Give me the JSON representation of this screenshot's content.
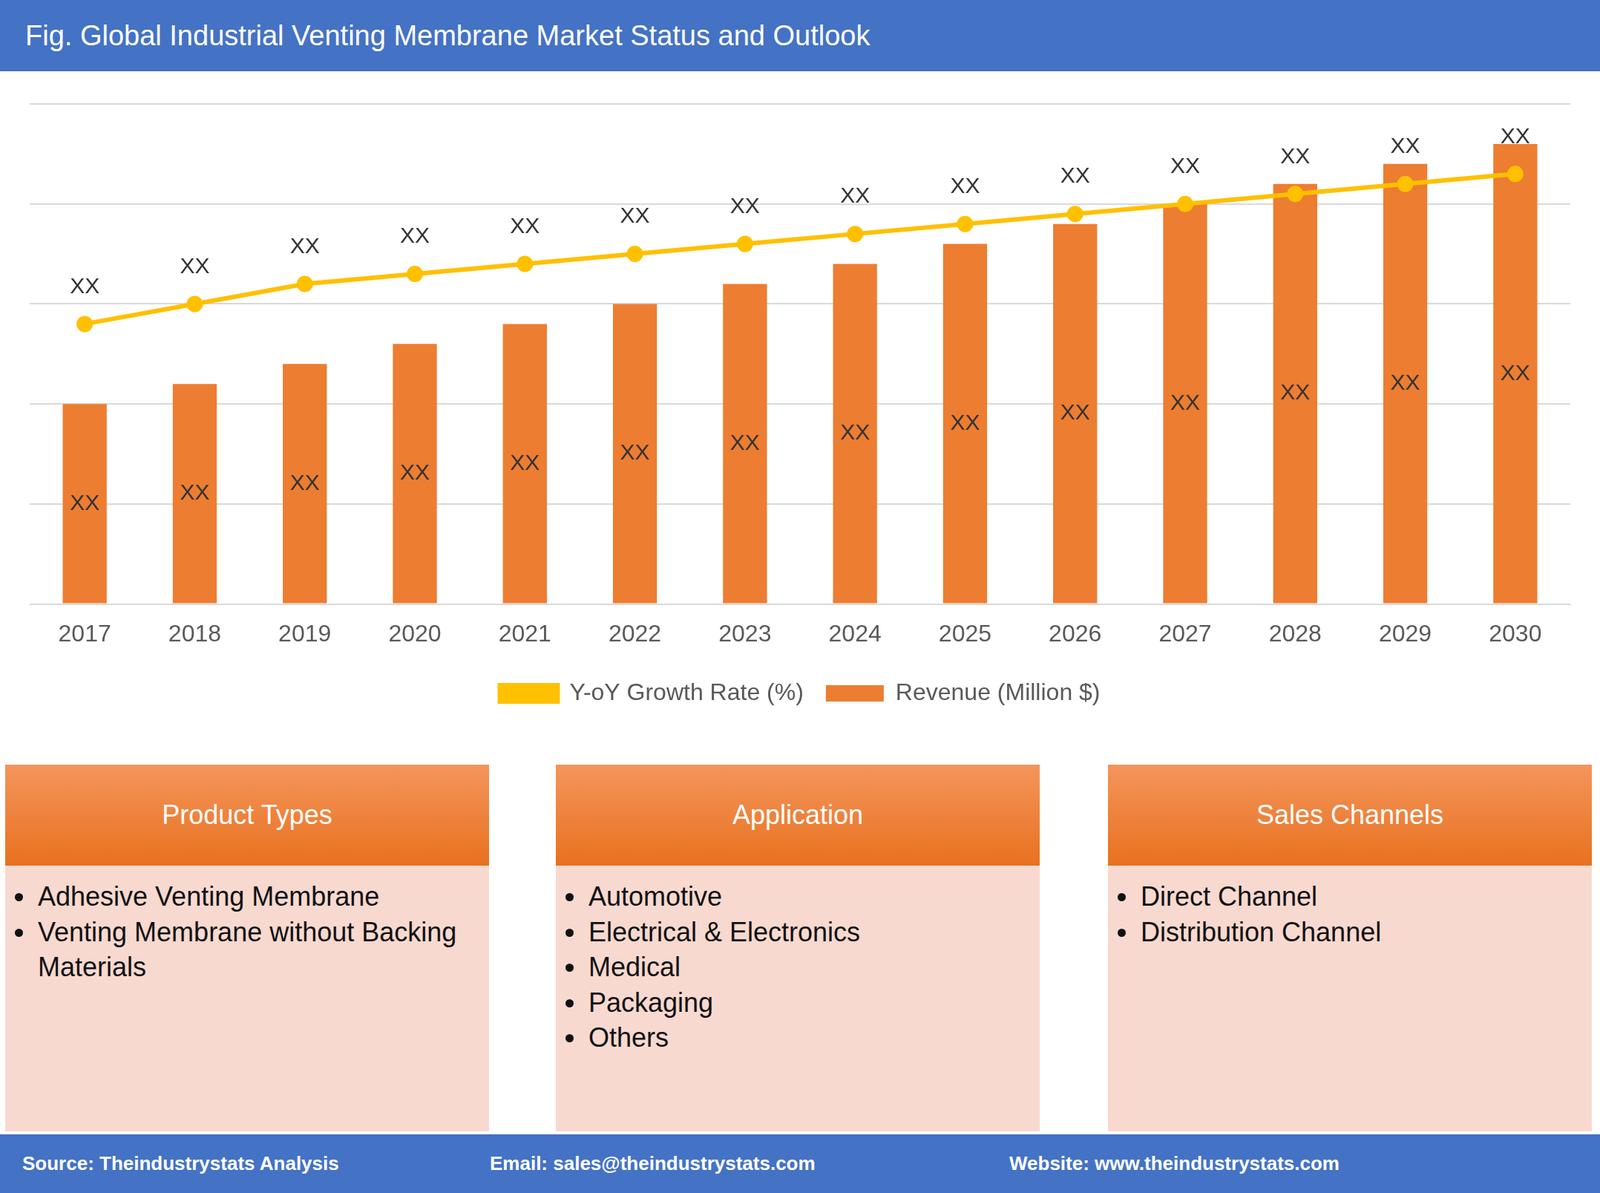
{
  "header": {
    "title": "Fig. Global Industrial Venting Membrane Market Status and Outlook"
  },
  "chart_data": {
    "type": "bar",
    "categories": [
      "2017",
      "2018",
      "2019",
      "2020",
      "2021",
      "2022",
      "2023",
      "2024",
      "2025",
      "2026",
      "2027",
      "2028",
      "2029",
      "2030"
    ],
    "series": [
      {
        "name": "Revenue (Million $)",
        "type": "bar",
        "color": "#ed7d31",
        "values": [
          2.0,
          2.2,
          2.4,
          2.6,
          2.8,
          3.0,
          3.2,
          3.4,
          3.6,
          3.8,
          4.0,
          4.2,
          4.4,
          4.6
        ],
        "value_labels": [
          "XX",
          "XX",
          "XX",
          "XX",
          "XX",
          "XX",
          "XX",
          "XX",
          "XX",
          "XX",
          "XX",
          "XX",
          "XX",
          "XX"
        ]
      },
      {
        "name": "Y-oY Growth Rate (%)",
        "type": "line",
        "color": "#ffc000",
        "marker": "circle",
        "values": [
          2.8,
          3.0,
          3.2,
          3.3,
          3.4,
          3.5,
          3.6,
          3.7,
          3.8,
          3.9,
          4.0,
          4.1,
          4.2,
          4.3
        ],
        "value_labels": [
          "XX",
          "XX",
          "XX",
          "XX",
          "XX",
          "XX",
          "XX",
          "XX",
          "XX",
          "XX",
          "XX",
          "XX",
          "XX",
          "XX"
        ]
      }
    ],
    "ylim": [
      0,
      5
    ],
    "yticks": [
      0,
      1,
      2,
      3,
      4,
      5
    ],
    "grid": true,
    "legend": "bottom",
    "data_labels": true,
    "tick_labels": "x"
  },
  "panels": [
    {
      "title": "Product Types",
      "items": [
        "Adhesive Venting Membrane",
        "Venting Membrane without Backing Materials"
      ]
    },
    {
      "title": "Application",
      "items": [
        "Automotive",
        "Electrical & Electronics",
        "Medical",
        "Packaging",
        "Others"
      ]
    },
    {
      "title": "Sales Channels",
      "items": [
        "Direct Channel",
        "Distribution Channel"
      ]
    }
  ],
  "footer": {
    "source": "Source: Theindustrystats Analysis",
    "email": "Email: sales@theindustrystats.com",
    "website": "Website: www.theindustrystats.com"
  }
}
